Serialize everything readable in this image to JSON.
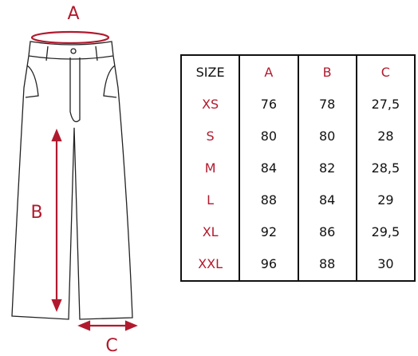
{
  "diagram": {
    "labels": {
      "a": "A",
      "b": "B",
      "c": "C"
    }
  },
  "table": {
    "header": [
      "SIZE",
      "A",
      "B",
      "C"
    ],
    "rows": [
      [
        "XS",
        "76",
        "78",
        "27,5"
      ],
      [
        "S",
        "80",
        "80",
        "28"
      ],
      [
        "M",
        "84",
        "82",
        "28,5"
      ],
      [
        "L",
        "88",
        "84",
        "29"
      ],
      [
        "XL",
        "92",
        "86",
        "29,5"
      ],
      [
        "XXL",
        "96",
        "88",
        "30"
      ]
    ]
  }
}
